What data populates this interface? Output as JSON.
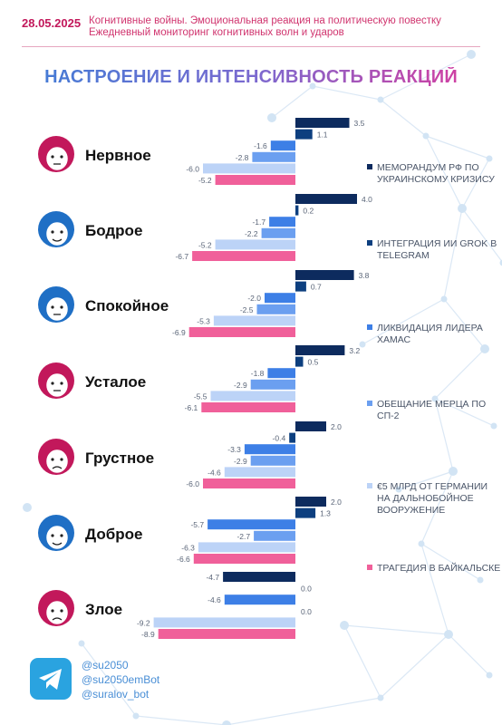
{
  "header": {
    "date": "28.05.2025",
    "subtitle_line1": "Когнитивные войны. Эмоциональная реакция на политическую повестку",
    "subtitle_line2": "Ежедневный мониторинг когнитивных волн и ударов"
  },
  "colors": {
    "accent_pink": "#c2185b",
    "link_blue": "#4a8fd6",
    "telegram_blue": "#2aa3e0"
  },
  "chart_data": {
    "type": "bar",
    "orientation": "horizontal",
    "title": "НАСТРОЕНИЕ И ИНТЕНСИВНОСТЬ РЕАКЦИЙ",
    "categories": [
      "Нервное",
      "Бодрое",
      "Спокойное",
      "Усталое",
      "Грустное",
      "Доброе",
      "Злое"
    ],
    "category_icons": [
      "face-nervous-icon",
      "face-cheerful-icon",
      "face-calm-icon",
      "face-tired-icon",
      "face-sad-icon",
      "face-kind-icon",
      "face-angry-icon"
    ],
    "icon_colors": [
      "#c2185b",
      "#1f6fc5",
      "#1f6fc5",
      "#c2185b",
      "#c2185b",
      "#1f6fc5",
      "#c2185b"
    ],
    "series": [
      {
        "name": "МЕМОРАНДУМ РФ ПО УКРАИНСКОМУ КРИЗИСУ",
        "color": "#0d2b5e",
        "values": [
          3.5,
          4.0,
          3.8,
          3.2,
          2.0,
          2.0,
          -4.7
        ]
      },
      {
        "name": "ИНТЕГРАЦИЯ ИИ GROK В TELEGRAM",
        "color": "#0d3f7f",
        "values": [
          1.1,
          0.2,
          0.7,
          0.5,
          -0.4,
          1.3,
          0.0
        ]
      },
      {
        "name": "ЛИКВИДАЦИЯ ЛИДЕРА ХАМАС",
        "color": "#3d7fe6",
        "values": [
          -1.6,
          -1.7,
          -2.0,
          -1.8,
          -3.3,
          -5.7,
          -4.6
        ]
      },
      {
        "name": "ОБЕЩАНИЕ МЕРЦА ПО СП-2",
        "color": "#6b9ff0",
        "values": [
          -2.8,
          -2.2,
          -2.5,
          -2.9,
          -2.9,
          -2.7,
          0.0
        ]
      },
      {
        "name": "€5 МЛРД ОТ ГЕРМАНИИ НА ДАЛЬНОБОЙНОЕ ВООРУЖЕНИЕ",
        "color": "#bcd3f7",
        "values": [
          -6.0,
          -5.2,
          -5.3,
          -5.5,
          -4.6,
          -6.3,
          -9.2
        ]
      },
      {
        "name": "ТРАГЕДИЯ В БАЙКАЛЬСКЕ",
        "color": "#f0609a",
        "values": [
          -5.2,
          -6.7,
          -6.9,
          -6.1,
          -6.0,
          -6.6,
          -8.9
        ]
      }
    ],
    "value_labels": [
      [
        "3.5",
        "1.1",
        "-1.6",
        "-2.8",
        "-6.0",
        "-5.2"
      ],
      [
        "4.0",
        "0.2",
        "-1.7",
        "-2.2",
        "-5.2",
        "-6.7"
      ],
      [
        "3.8",
        "0.7",
        "-2.0",
        "-2.5",
        "-5.3",
        "-6.9"
      ],
      [
        "3.2",
        "0.5",
        "-1.8",
        "-2.9",
        "-5.5",
        "-6.1"
      ],
      [
        "2.0",
        "-0.4",
        "-3.3",
        "-2.9",
        "-4.6",
        "-6.0"
      ],
      [
        "2.0",
        "1.3",
        "-5.7",
        "-2.7",
        "-6.3",
        "-6.6"
      ],
      [
        "-4.7",
        "0.0",
        "-4.6",
        "0.0",
        "-9.2",
        "-8.9"
      ]
    ],
    "legend_placement": "right",
    "grid": false
  },
  "footer": {
    "links": [
      "@su2050",
      "@su2050emBot",
      "@suralov_bot"
    ],
    "logo_icon": "telegram-icon"
  }
}
